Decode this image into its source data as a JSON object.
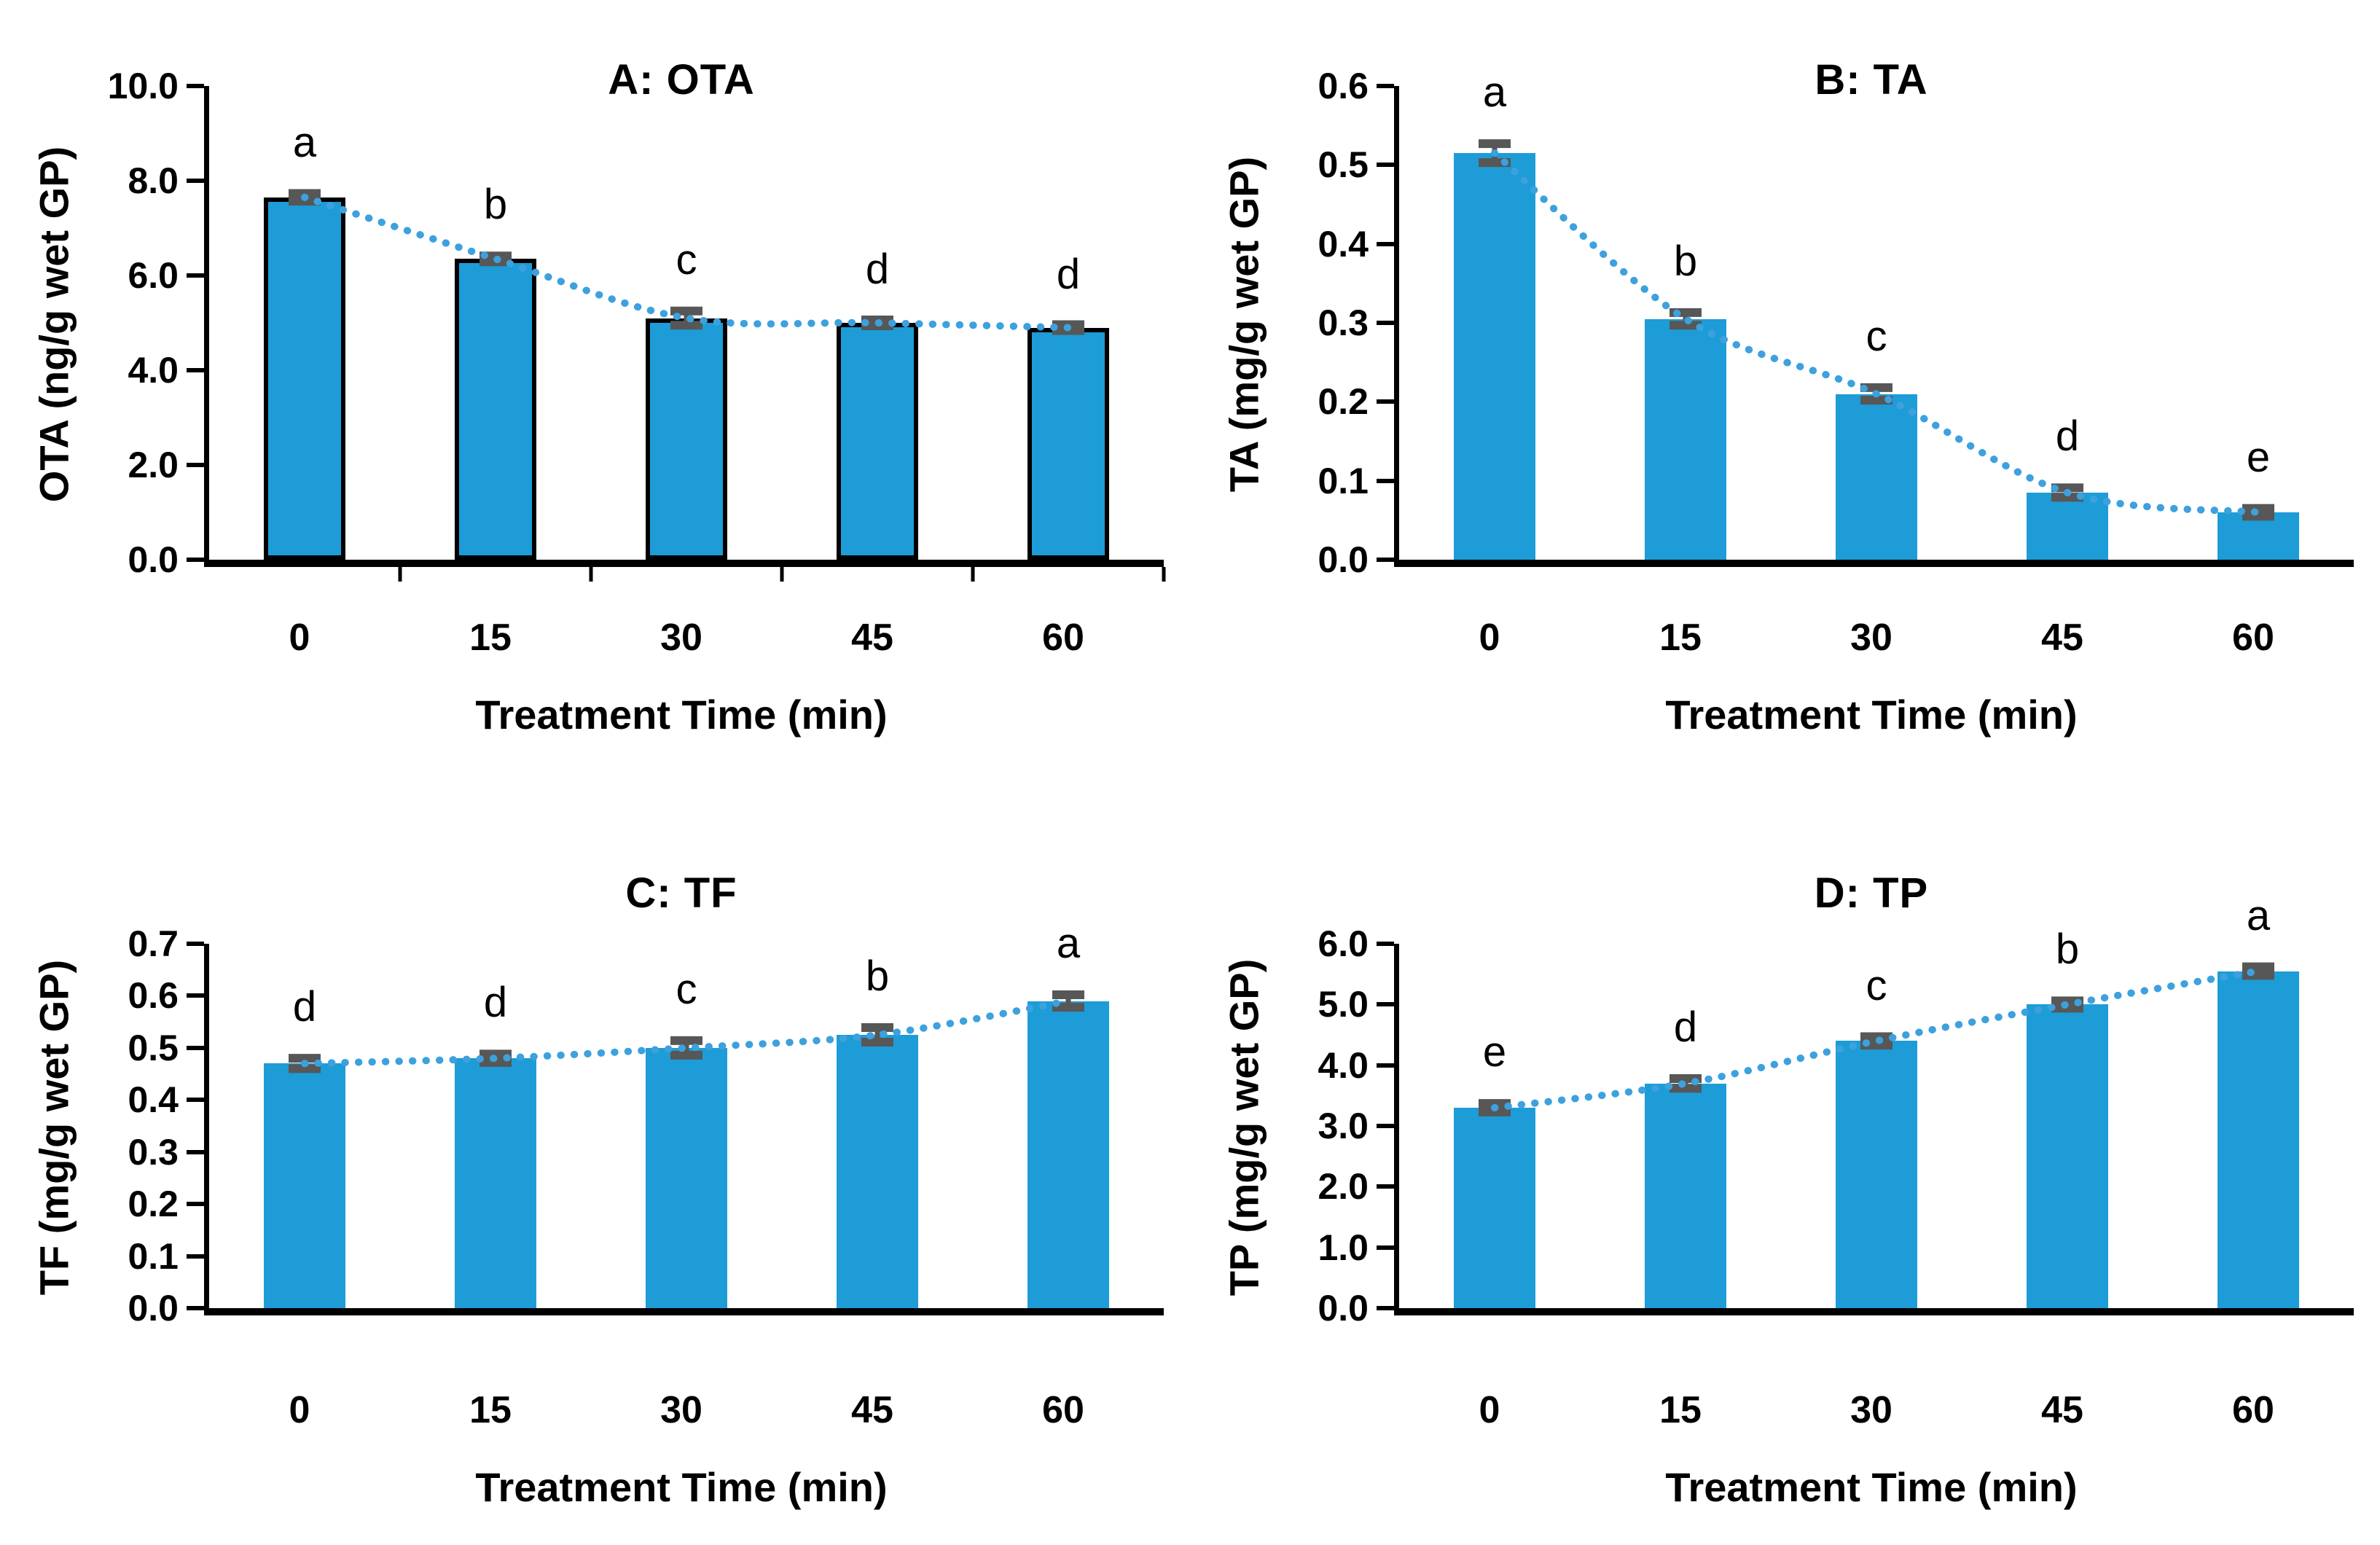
{
  "colors": {
    "bar_fill": "#1E9CD7",
    "bar_outline": "#000000",
    "trendline": "#3DA1DD",
    "error_bar": "#575757",
    "axis": "#000000",
    "text": "#000000",
    "background": "#FFFFFF"
  },
  "chart_data": [
    {
      "type": "bar",
      "panel_label": "A: OTA",
      "title": "A: OTA",
      "ylabel": "OTA  (ng/g wet GP)",
      "xlabel": "Treatment Time (min)",
      "categories": [
        "0",
        "15",
        "30",
        "45",
        "60"
      ],
      "values": [
        7.65,
        6.35,
        5.1,
        5.0,
        4.9
      ],
      "errors": [
        0.08,
        0.06,
        0.15,
        0.05,
        0.04
      ],
      "sig_letters": [
        "a",
        "b",
        "c",
        "d",
        "d"
      ],
      "ylim": [
        0,
        10
      ],
      "ytick_labels": [
        "10.0",
        "8.0",
        "6.0",
        "4.0",
        "2.0",
        "0.0"
      ],
      "grid": false,
      "legend": false,
      "trendline": "dotted decreasing curve through bar tops",
      "bar_outline": true,
      "x_boundary_ticks": true
    },
    {
      "type": "bar",
      "panel_label": "B: TA",
      "title": "B: TA",
      "ylabel": "TA (mg/g wet GP)",
      "xlabel": "Treatment Time (min)",
      "categories": [
        "0",
        "15",
        "30",
        "45",
        "60"
      ],
      "values": [
        0.515,
        0.305,
        0.21,
        0.085,
        0.06
      ],
      "errors": [
        0.012,
        0.008,
        0.008,
        0.006,
        0.005
      ],
      "sig_letters": [
        "a",
        "b",
        "c",
        "d",
        "e"
      ],
      "ylim": [
        0,
        0.6
      ],
      "ytick_labels": [
        "0.6",
        "0.5",
        "0.4",
        "0.3",
        "0.2",
        "0.1",
        "0.0"
      ],
      "grid": false,
      "legend": false,
      "trendline": "dotted decreasing curve through bar tops",
      "bar_outline": false,
      "x_boundary_ticks": false
    },
    {
      "type": "bar",
      "panel_label": "C: TF",
      "title": "C: TF",
      "ylabel": "TF (mg/g wet GP)",
      "xlabel": "Treatment Time (min)",
      "categories": [
        "0",
        "15",
        "30",
        "45",
        "60"
      ],
      "values": [
        0.47,
        0.48,
        0.5,
        0.525,
        0.59
      ],
      "errors": [
        0.01,
        0.008,
        0.014,
        0.014,
        0.012
      ],
      "sig_letters": [
        "d",
        "d",
        "c",
        "b",
        "a"
      ],
      "ylim": [
        0,
        0.7
      ],
      "ytick_labels": [
        "0.7",
        "0.6",
        "0.5",
        "0.4",
        "0.3",
        "0.2",
        "0.1",
        "0.0"
      ],
      "grid": false,
      "legend": false,
      "trendline": "dotted increasing curve through bar tops",
      "bar_outline": false,
      "x_boundary_ticks": false
    },
    {
      "type": "bar",
      "panel_label": "D: TP",
      "title": "D: TP",
      "ylabel": "TP (mg/g wet GP)",
      "xlabel": "Treatment Time (min)",
      "categories": [
        "0",
        "15",
        "30",
        "45",
        "60"
      ],
      "values": [
        3.3,
        3.7,
        4.4,
        5.0,
        5.55
      ],
      "errors": [
        0.07,
        0.08,
        0.07,
        0.06,
        0.07
      ],
      "sig_letters": [
        "e",
        "d",
        "c",
        "b",
        "a"
      ],
      "ylim": [
        0,
        6
      ],
      "ytick_labels": [
        "6.0",
        "5.0",
        "4.0",
        "3.0",
        "2.0",
        "1.0",
        "0.0"
      ],
      "grid": false,
      "legend": false,
      "trendline": "dotted increasing curve through bar tops",
      "bar_outline": false,
      "x_boundary_ticks": false
    }
  ]
}
